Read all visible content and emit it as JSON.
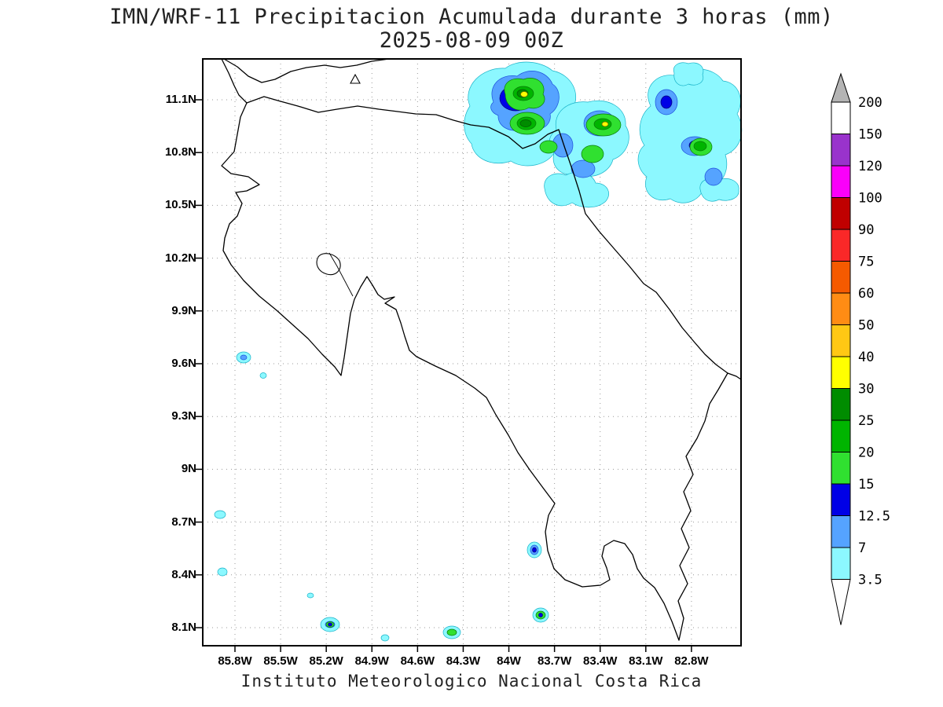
{
  "title": "IMN/WRF-11 Precipitacion Acumulada durante 3 horas (mm)",
  "subtitle": "2025-08-09 00Z",
  "caption": "Instituto Meteorologico Nacional Costa Rica",
  "axes": {
    "lat_ticks": [
      "11.1N",
      "10.8N",
      "10.5N",
      "10.2N",
      "9.9N",
      "9.6N",
      "9.3N",
      "9N",
      "8.7N",
      "8.4N",
      "8.1N"
    ],
    "lon_ticks": [
      "85.8W",
      "85.5W",
      "85.2W",
      "84.9W",
      "84.6W",
      "84.3W",
      "84W",
      "83.7W",
      "83.4W",
      "83.1W",
      "82.8W"
    ]
  },
  "colorbar": {
    "levels_top_to_bottom": [
      "200",
      "150",
      "120",
      "100",
      "90",
      "75",
      "60",
      "50",
      "40",
      "30",
      "25",
      "20",
      "15",
      "12.5",
      "7",
      "3.5"
    ],
    "segment_colors_top_to_bottom": [
      "#ffffff",
      "#9933cc",
      "#fa00fa",
      "#c00000",
      "#fa2828",
      "#f55a00",
      "#ff8c14",
      "#ffc814",
      "#ffff00",
      "#008c00",
      "#00b400",
      "#30e030",
      "#0000e6",
      "#55a3ff",
      "#8cf8ff"
    ],
    "above_max_color": "#b4b4b4",
    "below_min_color": "#ffffff",
    "units": "mm"
  },
  "chart_data": {
    "type": "heatmap",
    "title": "IMN/WRF-11 Precipitacion Acumulada durante 3 horas (mm)",
    "valid_time": "2025-08-09 00Z",
    "units": "mm",
    "region": "Costa Rica",
    "lat_range_deg_n": [
      8.0,
      11.33
    ],
    "lon_range_deg_w": [
      86.0,
      82.47
    ],
    "scale_levels_mm": [
      3.5,
      7,
      12.5,
      15,
      20,
      25,
      30,
      40,
      50,
      60,
      75,
      90,
      100,
      120,
      150,
      200
    ],
    "precipitation_cells": [
      {
        "area": "Northern Caribbean coast near Nicaragua border (main cluster, west core)",
        "approx_lat": 10.93,
        "approx_lon": -83.9,
        "peak_mm_bin": "30-40"
      },
      {
        "area": "Northern Caribbean cluster, central core",
        "approx_lat": 10.96,
        "approx_lon": -83.36,
        "peak_mm_bin": "30-40"
      },
      {
        "area": "Caribbean offshore, north-east cluster",
        "approx_lat": 10.85,
        "approx_lon": -82.75,
        "peak_mm_bin": "20-25"
      },
      {
        "area": "Pacific offshore west of Nicoya Peninsula",
        "approx_lat": 9.6,
        "approx_lon": -85.74,
        "peak_mm_bin": "7-12.5"
      },
      {
        "area": "Golfo Dulce / Osa inland spot",
        "approx_lat": 8.54,
        "approx_lon": -83.83,
        "peak_mm_bin": "12.5-15"
      },
      {
        "area": "Pacific offshore south of Osa",
        "approx_lat": 8.17,
        "approx_lon": -83.79,
        "peak_mm_bin": "15-20"
      },
      {
        "area": "Pacific offshore south-central",
        "approx_lat": 8.12,
        "approx_lon": -85.17,
        "peak_mm_bin": "15-20"
      },
      {
        "area": "Pacific offshore bottom edge",
        "approx_lat": 8.05,
        "approx_lon": -84.37,
        "peak_mm_bin": "15-20"
      }
    ]
  }
}
